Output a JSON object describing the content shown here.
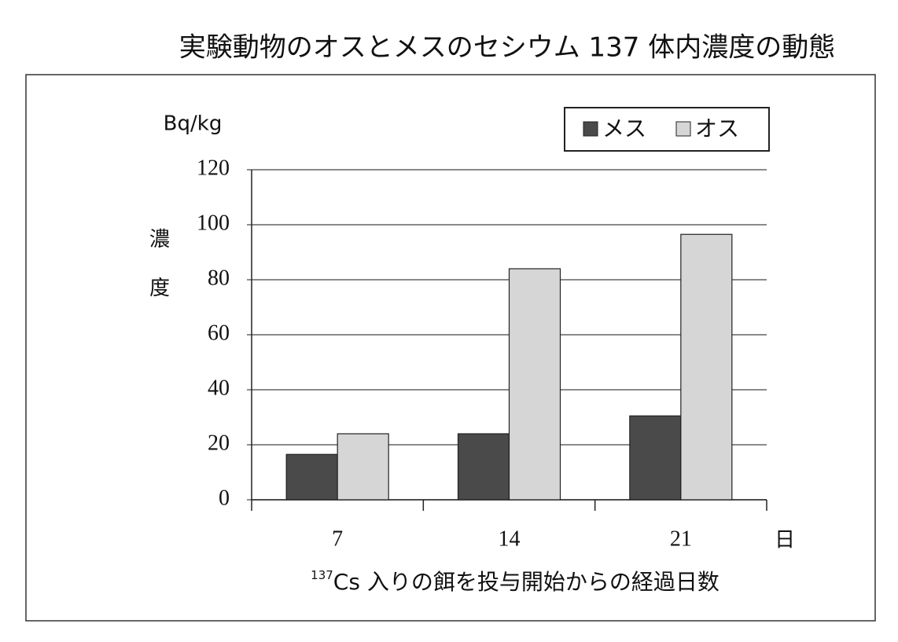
{
  "chart_data": {
    "type": "bar",
    "title": "実験動物のオスとメスのセシウム 137 体内濃度の動態",
    "y_unit": "Bq/kg",
    "ylabel": "濃度",
    "x_unit": "日",
    "xlabel": {
      "superscript": "137",
      "text": "Cs 入りの餌を投与開始からの経過日数"
    },
    "categories": [
      "7",
      "14",
      "21"
    ],
    "series": [
      {
        "name": "メス",
        "color": "#4a4a4a",
        "values": [
          16.5,
          24,
          30.5
        ]
      },
      {
        "name": "オス",
        "color": "#d6d6d6",
        "values": [
          24,
          84,
          96.5
        ]
      }
    ],
    "ylim": [
      0,
      120
    ],
    "yticks": [
      0,
      20,
      40,
      60,
      80,
      100,
      120
    ],
    "grid": true
  }
}
